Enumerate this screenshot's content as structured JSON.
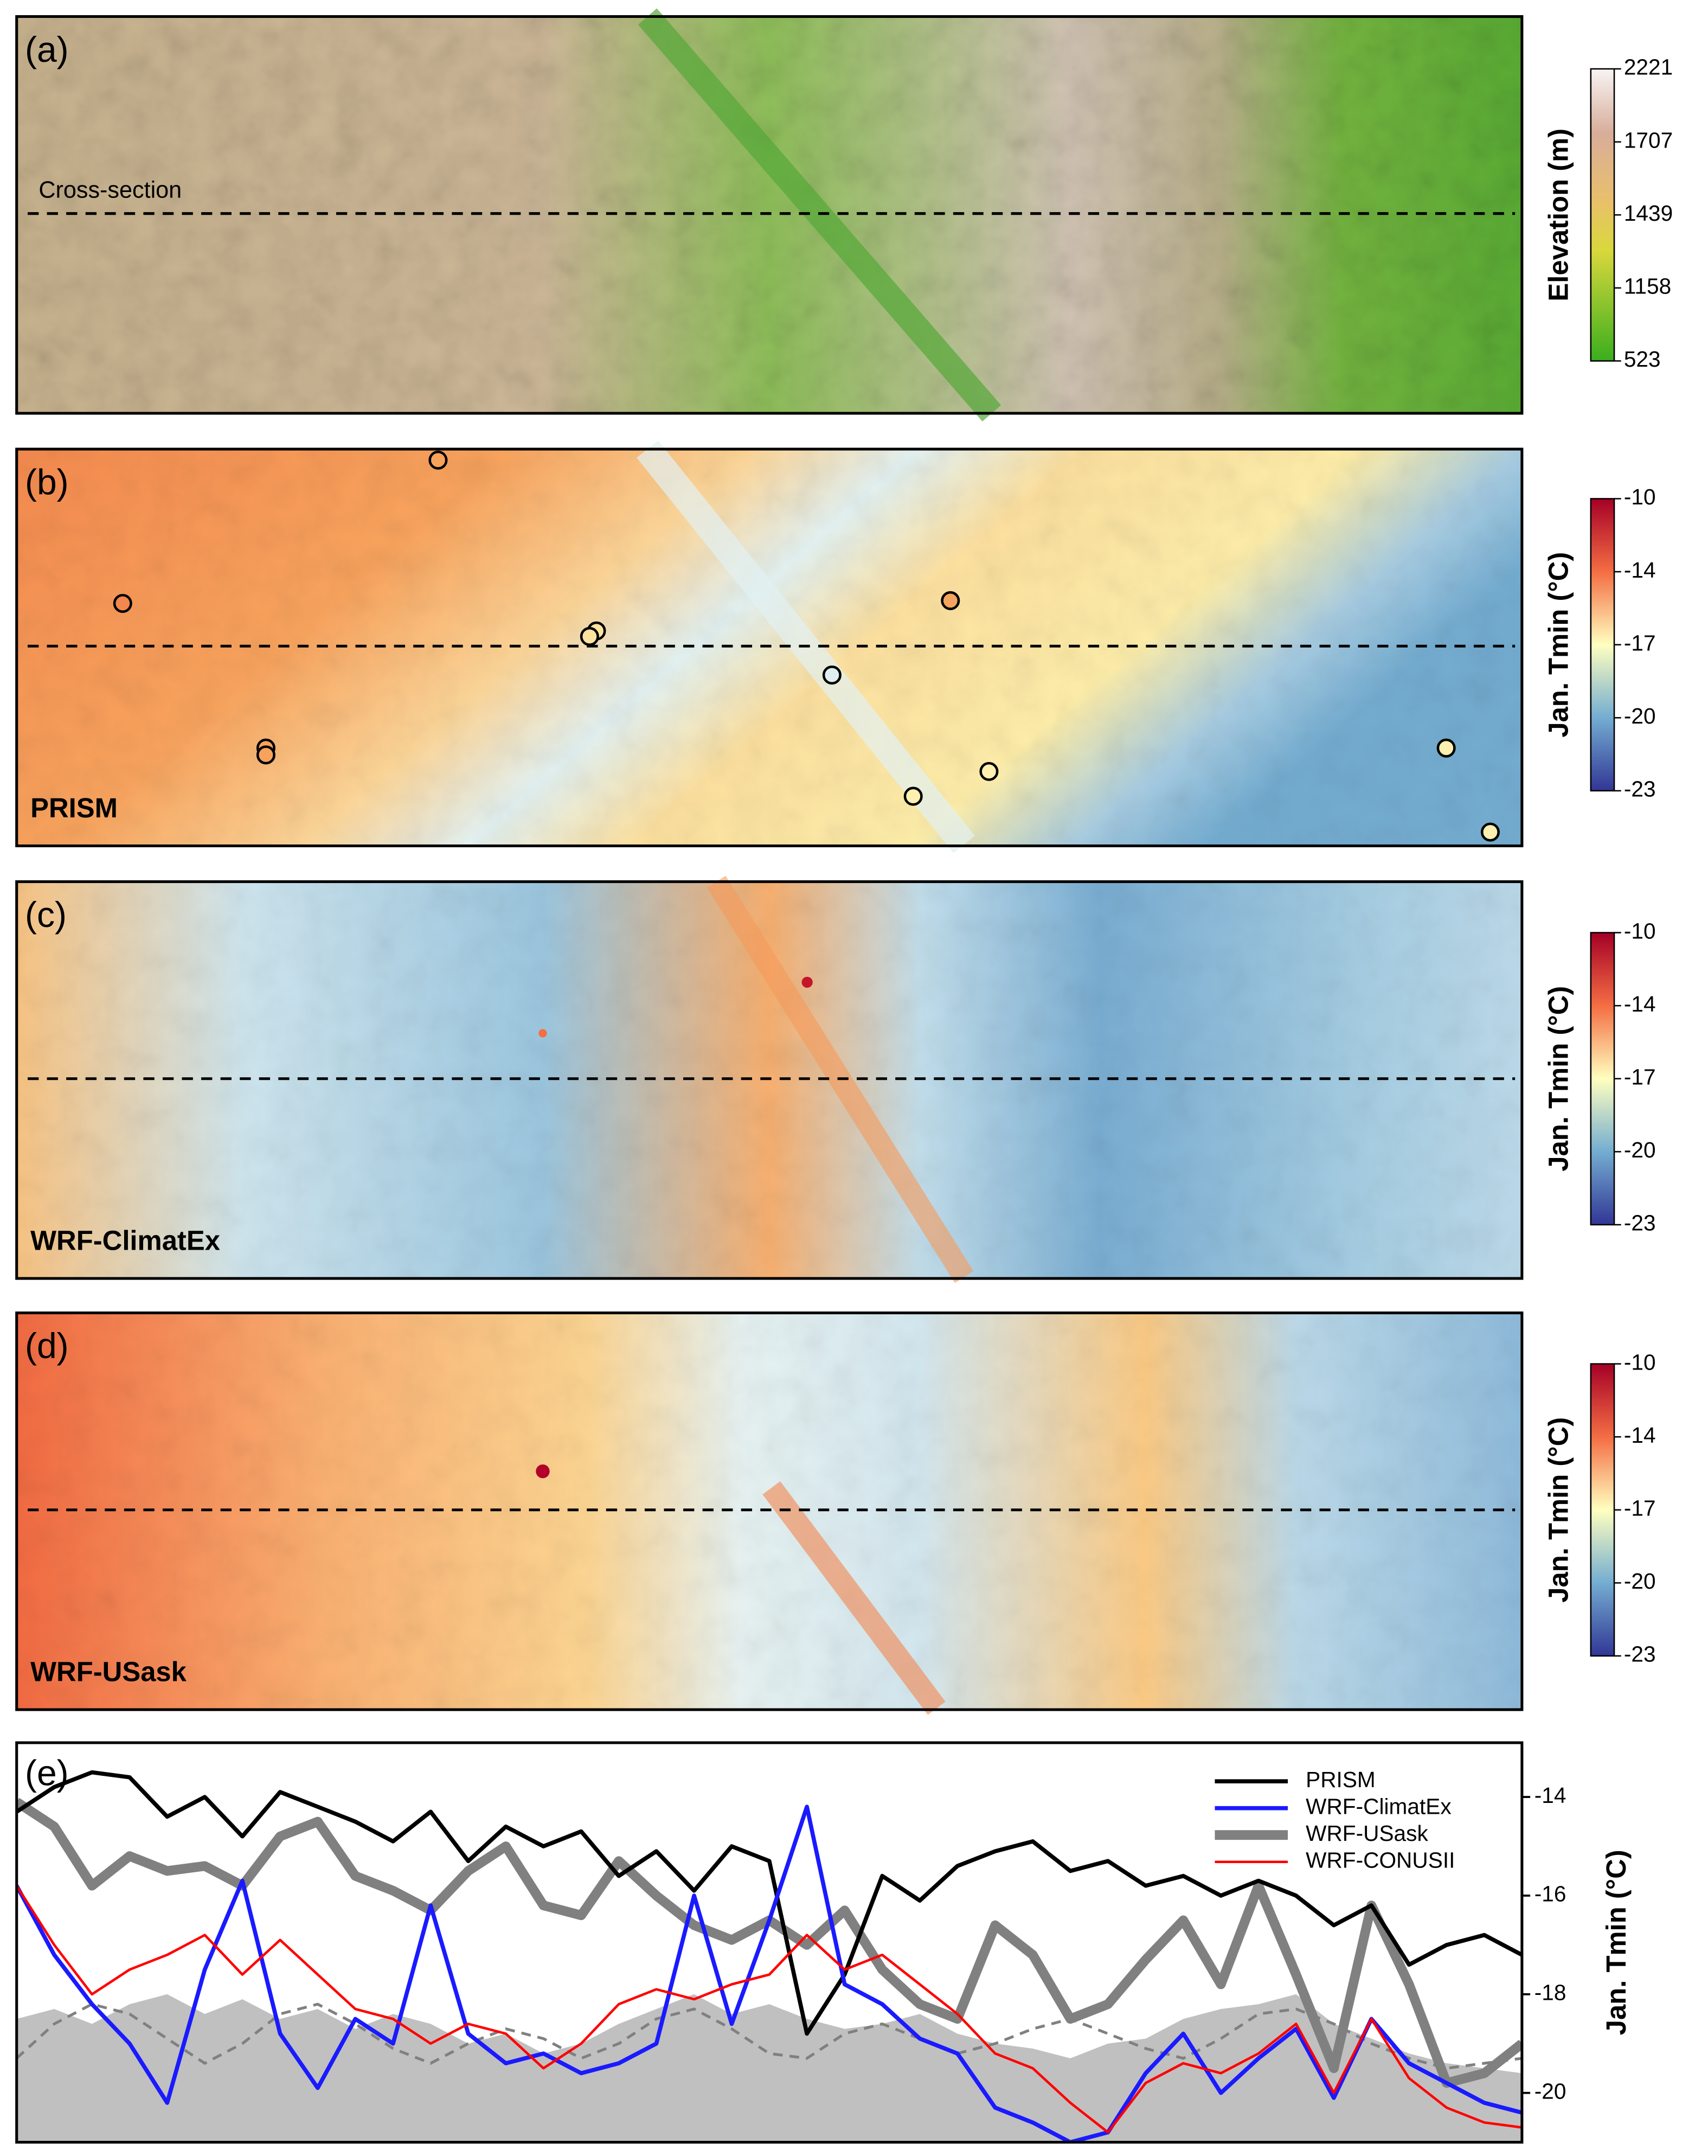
{
  "panels": [
    {
      "label": "(a)",
      "annotation": "Cross-section",
      "colorbar": {
        "label": "Elevation (m)",
        "ticks": [
          2221,
          1707,
          1439,
          1158,
          523
        ]
      }
    },
    {
      "label": "(b)",
      "name": "PRISM",
      "colorbar": {
        "label": "Jan. Tmin (°C)",
        "ticks": [
          -10,
          -14,
          -17,
          -20,
          -23
        ]
      }
    },
    {
      "label": "(c)",
      "name": "WRF-ClimatEx",
      "colorbar": {
        "label": "Jan. Tmin (°C)",
        "ticks": [
          -10,
          -14,
          -17,
          -20,
          -23
        ]
      }
    },
    {
      "label": "(d)",
      "name": "WRF-USask",
      "colorbar": {
        "label": "Jan. Tmin (°C)",
        "ticks": [
          -10,
          -14,
          -17,
          -20,
          -23
        ]
      }
    }
  ],
  "chart_data": {
    "type": "line",
    "label": "(e)",
    "ylabel": "Jan. Tmin (°C)",
    "x": [
      0,
      1,
      2,
      3,
      4,
      5,
      6,
      7,
      8,
      9,
      10,
      11,
      12,
      13,
      14,
      15,
      16,
      17,
      18,
      19,
      20,
      21,
      22,
      23,
      24,
      25,
      26,
      27,
      28,
      29,
      30,
      31,
      32,
      33,
      34,
      35,
      36,
      37,
      38,
      39,
      40
    ],
    "xlim": [
      0,
      40
    ],
    "ylim": [
      -21,
      -12.9
    ],
    "yticks": [
      -14,
      -16,
      -18,
      -20
    ],
    "background_series": [
      {
        "style": "area",
        "color": "#c0c0c0",
        "values": [
          -18.5,
          -18.3,
          -18.6,
          -18.2,
          -18.0,
          -18.4,
          -18.1,
          -18.5,
          -18.3,
          -18.7,
          -18.4,
          -18.6,
          -19.0,
          -18.8,
          -19.2,
          -19.0,
          -18.6,
          -18.3,
          -18.0,
          -18.4,
          -18.2,
          -18.5,
          -18.7,
          -18.6,
          -18.4,
          -18.8,
          -19.0,
          -19.1,
          -19.3,
          -19.0,
          -18.9,
          -18.5,
          -18.3,
          -18.2,
          -18.0,
          -18.6,
          -18.9,
          -19.2,
          -19.4,
          -19.5,
          -19.6
        ]
      },
      {
        "style": "dashed",
        "color": "#808080",
        "values": [
          -19.3,
          -18.6,
          -18.2,
          -18.4,
          -18.9,
          -19.4,
          -19.0,
          -18.4,
          -18.2,
          -18.6,
          -19.1,
          -19.4,
          -19.0,
          -18.7,
          -18.9,
          -19.3,
          -19.0,
          -18.5,
          -18.3,
          -18.7,
          -19.2,
          -19.3,
          -18.8,
          -18.6,
          -18.9,
          -19.2,
          -19.0,
          -18.7,
          -18.5,
          -18.8,
          -19.1,
          -19.3,
          -18.9,
          -18.4,
          -18.3,
          -18.6,
          -19.0,
          -19.3,
          -19.5,
          -19.4,
          -19.3
        ]
      }
    ],
    "series": [
      {
        "name": "PRISM",
        "color": "#000000",
        "width": 3,
        "values": [
          -14.3,
          -13.8,
          -13.5,
          -13.6,
          -14.4,
          -14.0,
          -14.8,
          -13.9,
          -14.2,
          -14.5,
          -14.9,
          -14.3,
          -15.3,
          -14.6,
          -15.0,
          -14.7,
          -15.6,
          -15.1,
          -15.9,
          -15.0,
          -15.3,
          -18.8,
          -17.6,
          -15.6,
          -16.1,
          -15.4,
          -15.1,
          -14.9,
          -15.5,
          -15.3,
          -15.8,
          -15.6,
          -16.0,
          -15.7,
          -16.0,
          -16.6,
          -16.2,
          -17.4,
          -17.0,
          -16.8,
          -17.2
        ]
      },
      {
        "name": "WRF-ClimatEx",
        "color": "#1a1aff",
        "width": 3,
        "values": [
          -15.8,
          -17.2,
          -18.2,
          -19.0,
          -20.2,
          -17.5,
          -15.7,
          -18.8,
          -19.9,
          -18.5,
          -19.0,
          -16.2,
          -18.8,
          -19.4,
          -19.2,
          -19.6,
          -19.4,
          -19.0,
          -16.0,
          -18.6,
          -16.5,
          -14.2,
          -17.8,
          -18.2,
          -18.9,
          -19.2,
          -20.3,
          -20.6,
          -21.0,
          -20.8,
          -19.6,
          -18.8,
          -20.0,
          -19.3,
          -18.7,
          -20.1,
          -18.5,
          -19.4,
          -19.8,
          -20.2,
          -20.4
        ]
      },
      {
        "name": "WRF-USask",
        "color": "#808080",
        "width": 7,
        "values": [
          -14.1,
          -14.6,
          -15.8,
          -15.2,
          -15.5,
          -15.4,
          -15.8,
          -14.8,
          -14.5,
          -15.6,
          -15.9,
          -16.3,
          -15.5,
          -15.0,
          -16.2,
          -16.4,
          -15.3,
          -16.0,
          -16.6,
          -16.9,
          -16.5,
          -17.0,
          -16.3,
          -17.5,
          -18.2,
          -18.5,
          -16.6,
          -17.2,
          -18.5,
          -18.2,
          -17.3,
          -16.5,
          -17.8,
          -15.8,
          -17.6,
          -19.5,
          -16.2,
          -17.8,
          -19.8,
          -19.6,
          -19.0
        ]
      },
      {
        "name": "WRF-CONUSII",
        "color": "#ff0000",
        "width": 1.8,
        "values": [
          -15.8,
          -17.0,
          -18.0,
          -17.5,
          -17.2,
          -16.8,
          -17.6,
          -16.9,
          -17.6,
          -18.3,
          -18.5,
          -19.0,
          -18.6,
          -18.8,
          -19.5,
          -19.0,
          -18.2,
          -17.9,
          -18.1,
          -17.8,
          -17.6,
          -16.8,
          -17.5,
          -17.2,
          -17.8,
          -18.4,
          -19.2,
          -19.5,
          -20.2,
          -20.8,
          -19.8,
          -19.4,
          -19.6,
          -19.2,
          -18.6,
          -20.0,
          -18.5,
          -19.7,
          -20.3,
          -20.6,
          -20.7
        ]
      }
    ],
    "legend": "upper right"
  }
}
